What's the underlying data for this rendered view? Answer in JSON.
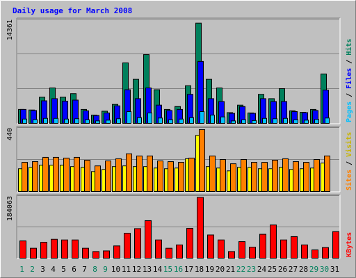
{
  "chart_data": [
    {
      "type": "bar",
      "title": "Daily usage for March 2008",
      "ymax_label": "14361",
      "ylim": [
        0,
        14361
      ],
      "grid": true,
      "legend": [
        "Pages",
        "Files",
        "Hits"
      ],
      "categories": [
        "1",
        "2",
        "3",
        "4",
        "5",
        "6",
        "7",
        "8",
        "9",
        "10",
        "11",
        "12",
        "13",
        "14",
        "15",
        "16",
        "17",
        "18",
        "19",
        "20",
        "21",
        "22",
        "23",
        "24",
        "25",
        "26",
        "27",
        "28",
        "29",
        "30",
        "31"
      ],
      "series": [
        {
          "name": "Hits",
          "color": "#00805c",
          "values": [
            1950,
            1870,
            3650,
            4950,
            3650,
            4150,
            1950,
            1150,
            1700,
            2650,
            8450,
            6150,
            9600,
            4700,
            1950,
            2350,
            5250,
            14000,
            6150,
            4950,
            1500,
            2550,
            1450,
            4050,
            3450,
            4850,
            1750,
            1550,
            1950,
            6900,
            0
          ]
        },
        {
          "name": "Files",
          "color": "#0000ff",
          "values": [
            1950,
            1800,
            3150,
            3450,
            3100,
            3250,
            1750,
            1100,
            1450,
            2450,
            4700,
            3450,
            4950,
            2550,
            1800,
            1950,
            4050,
            8650,
            3450,
            3050,
            1400,
            2350,
            1400,
            3450,
            3050,
            3050,
            1650,
            1500,
            1800,
            4650,
            0
          ]
        },
        {
          "name": "Pages",
          "color": "#00c0ff",
          "values": [
            600,
            520,
            700,
            700,
            600,
            650,
            500,
            350,
            450,
            650,
            1650,
            800,
            1450,
            750,
            500,
            600,
            800,
            1650,
            1150,
            900,
            350,
            500,
            400,
            700,
            650,
            700,
            500,
            450,
            550,
            750,
            0
          ]
        }
      ]
    },
    {
      "type": "bar",
      "ymax_label": "440",
      "ylim": [
        0,
        440
      ],
      "grid": true,
      "legend": [
        "Sites",
        "Visits"
      ],
      "categories": [
        "1",
        "2",
        "3",
        "4",
        "5",
        "6",
        "7",
        "8",
        "9",
        "10",
        "11",
        "12",
        "13",
        "14",
        "15",
        "16",
        "17",
        "18",
        "19",
        "20",
        "21",
        "22",
        "23",
        "24",
        "25",
        "26",
        "27",
        "28",
        "29",
        "30",
        "31"
      ],
      "series": [
        {
          "name": "Visits",
          "color": "#ffff00",
          "values": [
            160,
            170,
            185,
            185,
            185,
            175,
            170,
            140,
            155,
            175,
            180,
            175,
            175,
            165,
            160,
            165,
            230,
            395,
            175,
            165,
            145,
            170,
            170,
            160,
            160,
            170,
            155,
            160,
            165,
            200,
            0
          ]
        },
        {
          "name": "Sites",
          "color": "#ff8000",
          "values": [
            205,
            210,
            240,
            240,
            235,
            240,
            220,
            180,
            215,
            230,
            265,
            250,
            250,
            215,
            210,
            205,
            235,
            435,
            250,
            225,
            195,
            225,
            205,
            205,
            220,
            230,
            210,
            205,
            225,
            250,
            0
          ]
        }
      ]
    },
    {
      "type": "bar",
      "ymax_label": "184063",
      "ylim": [
        0,
        184063
      ],
      "grid": true,
      "legend": [
        "KBytes"
      ],
      "categories": [
        "1",
        "2",
        "3",
        "4",
        "5",
        "6",
        "7",
        "8",
        "9",
        "10",
        "11",
        "12",
        "13",
        "14",
        "15",
        "16",
        "17",
        "18",
        "19",
        "20",
        "21",
        "22",
        "23",
        "24",
        "25",
        "26",
        "27",
        "28",
        "29",
        "30",
        "31"
      ],
      "series": [
        {
          "name": "KBytes",
          "color": "#ff0000",
          "values": [
            52000,
            30000,
            48000,
            57000,
            55000,
            55000,
            30000,
            20000,
            22000,
            37000,
            75000,
            89000,
            113000,
            55000,
            30000,
            40000,
            90000,
            183000,
            70000,
            55000,
            20000,
            50000,
            33000,
            72000,
            100000,
            55000,
            65000,
            40000,
            25000,
            32000,
            80000
          ]
        }
      ]
    }
  ],
  "x_label_colors": {
    "weekday": "#000000",
    "weekend": "#00805c"
  },
  "weekend_days": [
    "1",
    "2",
    "8",
    "9",
    "15",
    "16",
    "22",
    "23",
    "29",
    "30"
  ],
  "colors": {
    "background": "#c0c0c0",
    "title": "#0000ff",
    "grid": "#808080"
  }
}
